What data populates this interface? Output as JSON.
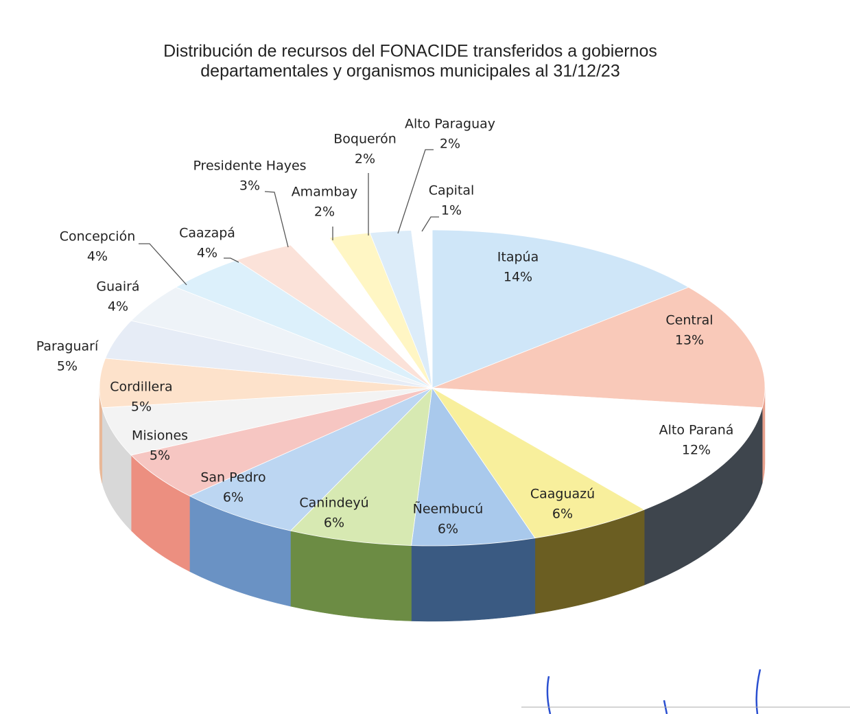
{
  "chart_data": {
    "type": "pie",
    "title": [
      "Distribución de recursos del FONACIDE transferidos a gobiernos",
      "departamentales y organismos municipales al 31/12/23"
    ],
    "categories": [
      "Itapúa",
      "Central",
      "Alto Paraná",
      "Caaguazú",
      "Ñeembucú",
      "Canindeyú",
      "San Pedro",
      "Misiones",
      "Cordillera",
      "Paraguarí",
      "Guairá",
      "Concepción",
      "Caazapá",
      "Presidente Hayes",
      "Amambay",
      "Boquerón",
      "Alto Paraguay",
      "Capital"
    ],
    "values": [
      14,
      13,
      12,
      6,
      6,
      6,
      6,
      5,
      5,
      5,
      4,
      4,
      4,
      3,
      2,
      2,
      2,
      1
    ],
    "value_labels": [
      "14%",
      "13%",
      "12%",
      "6%",
      "6%",
      "6%",
      "6%",
      "5%",
      "5%",
      "5%",
      "4%",
      "4%",
      "4%",
      "3%",
      "2%",
      "2%",
      "2%",
      "1%"
    ],
    "colors": [
      "#cfe6f8",
      "#f9c9b9",
      "#ffffff",
      "#f8ef9c",
      "#a9c9ec",
      "#d7e9b2",
      "#bcd6f2",
      "#f6c6c2",
      "#f3f3f3",
      "#fde2cb",
      "#e6ecf6",
      "#eef3f8",
      "#dcf0fb",
      "#fbe2d9",
      "#ffffff",
      "#fff6c4",
      "#dcecf9",
      "#ffffff"
    ],
    "side_colors": [
      "#8fb6d8",
      "#e8a08c",
      "#3e454d",
      "#6b5e22",
      "#3a5a82",
      "#6c8c44",
      "#6a92c4",
      "#ec8f80",
      "#d8d8d8",
      "#e8b898",
      "#c8d0dc",
      "#d0d8e0",
      "#a8c8e0",
      "#e8b8a8",
      "#e0e0e0",
      "#e8dc90",
      "#b0cce4",
      "#e0e0e0"
    ]
  }
}
